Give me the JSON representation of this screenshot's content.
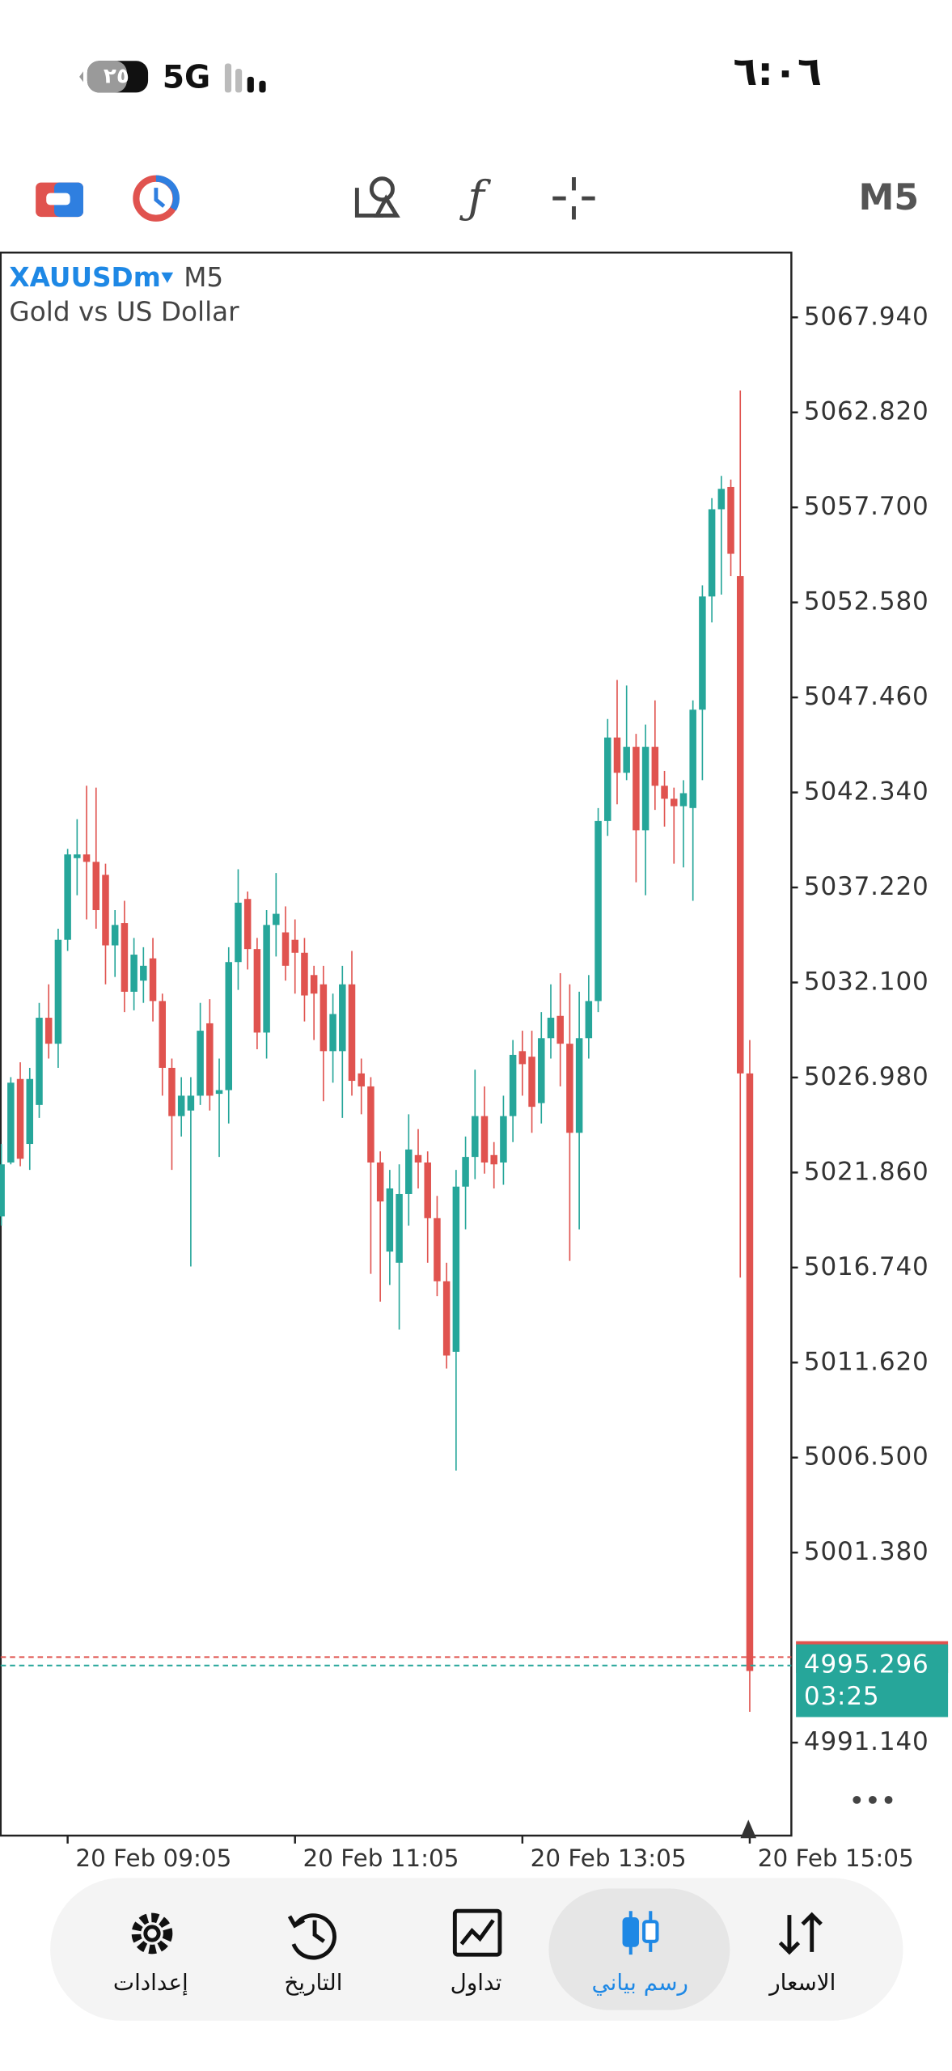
{
  "status_bar": {
    "time": "٦:٠٦",
    "network": "5G",
    "battery": "٢٥"
  },
  "nav": {
    "items": [
      "الاسعار",
      "رسم بياني",
      "تداول",
      "التاريخ",
      "إعدادات"
    ],
    "active": 1
  },
  "chart_data": {
    "type": "candlestick",
    "symbol": "XAUUSDm",
    "timeframe": "M5",
    "description": "Gold vs US Dollar",
    "up_color": "#26a69a",
    "down_color": "#e0534f",
    "ylim": [
      4986.13,
      5071.43
    ],
    "yticks": [
      {
        "value": 5067.94,
        "label": "5067.940"
      },
      {
        "value": 5062.82,
        "label": "5062.820"
      },
      {
        "value": 5057.7,
        "label": "5057.700"
      },
      {
        "value": 5052.58,
        "label": "5052.580"
      },
      {
        "value": 5047.46,
        "label": "5047.460"
      },
      {
        "value": 5042.34,
        "label": "5042.340"
      },
      {
        "value": 5037.22,
        "label": "5037.220"
      },
      {
        "value": 5032.1,
        "label": "5032.100"
      },
      {
        "value": 5026.98,
        "label": "5026.980"
      },
      {
        "value": 5021.86,
        "label": "5021.860"
      },
      {
        "value": 5016.74,
        "label": "5016.740"
      },
      {
        "value": 5011.62,
        "label": "5011.620"
      },
      {
        "value": 5006.5,
        "label": "5006.500"
      },
      {
        "value": 5001.38,
        "label": "5001.380"
      },
      {
        "value": 4991.14,
        "label": "4991.140"
      }
    ],
    "xlim": [
      -0.07,
      83.39
    ],
    "xticks": [
      {
        "value": 7,
        "label": "20 Feb 09:05"
      },
      {
        "value": 31,
        "label": "20 Feb 11:05"
      },
      {
        "value": 55,
        "label": "20 Feb 13:05"
      },
      {
        "value": 79,
        "label": "20 Feb 15:05"
      }
    ],
    "open": [
      5019.5,
      5022.4,
      5026.9,
      5023.4,
      5025.5,
      5030.2,
      5028.8,
      5034.4,
      5038.8,
      5039.0,
      5038.6,
      5037.9,
      5034.1,
      5035.3,
      5031.6,
      5032.2,
      5033.4,
      5031.1,
      5027.5,
      5024.9,
      5025.2,
      5026.0,
      5029.9,
      5026.1,
      5026.3,
      5033.2,
      5036.6,
      5033.9,
      5029.4,
      5035.2,
      5034.8,
      5034.4,
      5033.7,
      5032.5,
      5032.0,
      5028.4,
      5028.4,
      5032.0,
      5027.2,
      5026.5,
      5022.4,
      5017.6,
      5017.0,
      5020.7,
      5022.8,
      5022.4,
      5019.4,
      5016.0,
      5012.2,
      5021.1,
      5022.7,
      5024.9,
      5022.8,
      5022.4,
      5024.9,
      5028.4,
      5028.1,
      5025.6,
      5029.1,
      5030.3,
      5028.8,
      5024.0,
      5029.1,
      5031.1,
      5040.8,
      5045.3,
      5043.4,
      5044.8,
      5040.3,
      5044.8,
      5042.7,
      5042.0,
      5041.6,
      5041.5,
      5046.8,
      5052.9,
      5057.6,
      5058.8,
      5054.0,
      5027.2
    ],
    "high": [
      5023.4,
      5027.0,
      5027.8,
      5027.5,
      5031.0,
      5032.0,
      5035.0,
      5039.3,
      5040.9,
      5042.7,
      5042.6,
      5038.5,
      5036.0,
      5036.5,
      5034.5,
      5034.0,
      5034.5,
      5031.5,
      5028.0,
      5027.0,
      5027.0,
      5031.0,
      5031.2,
      5028.0,
      5034.0,
      5038.2,
      5037.0,
      5034.5,
      5036.0,
      5038.0,
      5036.2,
      5035.5,
      5034.5,
      5033.0,
      5033.0,
      5031.5,
      5033.0,
      5033.8,
      5028.0,
      5027.0,
      5023.0,
      5022.0,
      5022.3,
      5025.0,
      5024.2,
      5023.0,
      5020.6,
      5017.0,
      5022.0,
      5023.8,
      5027.4,
      5026.5,
      5023.5,
      5026.0,
      5029.0,
      5029.5,
      5029.5,
      5030.5,
      5032.0,
      5032.6,
      5032.0,
      5031.6,
      5032.5,
      5041.5,
      5046.3,
      5048.4,
      5048.1,
      5045.5,
      5046.0,
      5047.3,
      5043.5,
      5042.6,
      5043.0,
      5047.3,
      5053.5,
      5058.2,
      5059.4,
      5059.2,
      5064.0,
      5029.0
    ],
    "low": [
      5019.0,
      5022.3,
      5022.2,
      5022.0,
      5024.8,
      5028.0,
      5027.5,
      5033.8,
      5036.8,
      5035.5,
      5035.0,
      5032.0,
      5032.4,
      5030.5,
      5030.6,
      5031.0,
      5030.0,
      5026.0,
      5022.0,
      5023.8,
      5016.8,
      5025.5,
      5025.2,
      5022.7,
      5024.5,
      5031.7,
      5032.8,
      5028.5,
      5028.0,
      5033.5,
      5032.2,
      5031.5,
      5030.0,
      5029.0,
      5025.7,
      5026.7,
      5024.8,
      5026.0,
      5025.0,
      5016.4,
      5014.9,
      5015.8,
      5013.4,
      5019.0,
      5021.0,
      5017.0,
      5015.2,
      5011.3,
      5005.8,
      5018.8,
      5021.5,
      5021.8,
      5021.0,
      5021.2,
      5023.5,
      5026.0,
      5024.0,
      5024.5,
      5028.0,
      5026.5,
      5017.1,
      5018.8,
      5028.0,
      5030.5,
      5040.0,
      5041.7,
      5043.0,
      5037.5,
      5036.8,
      5041.4,
      5040.5,
      5038.5,
      5038.3,
      5036.5,
      5043.0,
      5051.5,
      5053.0,
      5054.0,
      5016.2,
      4992.8
    ],
    "close": [
      5022.3,
      5026.7,
      5022.6,
      5026.9,
      5030.2,
      5028.8,
      5034.4,
      5039.0,
      5039.0,
      5038.6,
      5036.0,
      5034.1,
      5035.2,
      5031.6,
      5033.6,
      5033.0,
      5031.1,
      5027.5,
      5024.9,
      5026.0,
      5026.0,
      5029.5,
      5026.0,
      5026.3,
      5033.2,
      5036.4,
      5033.9,
      5029.4,
      5035.2,
      5035.8,
      5033.0,
      5033.7,
      5031.4,
      5031.5,
      5028.4,
      5030.4,
      5032.0,
      5026.8,
      5026.5,
      5022.4,
      5020.3,
      5021.0,
      5020.7,
      5023.1,
      5022.4,
      5019.4,
      5016.0,
      5012.0,
      5021.1,
      5022.7,
      5024.9,
      5022.4,
      5022.3,
      5024.9,
      5028.2,
      5027.7,
      5025.4,
      5029.1,
      5030.2,
      5028.8,
      5024.0,
      5029.1,
      5031.1,
      5040.8,
      5045.3,
      5043.4,
      5044.8,
      5040.3,
      5044.8,
      5042.7,
      5042.0,
      5041.6,
      5042.3,
      5046.8,
      5052.9,
      5057.6,
      5058.7,
      5055.2,
      5027.2,
      4995.0
    ],
    "bid": 4995.296,
    "ask": 4995.75,
    "countdown": "03:25"
  }
}
